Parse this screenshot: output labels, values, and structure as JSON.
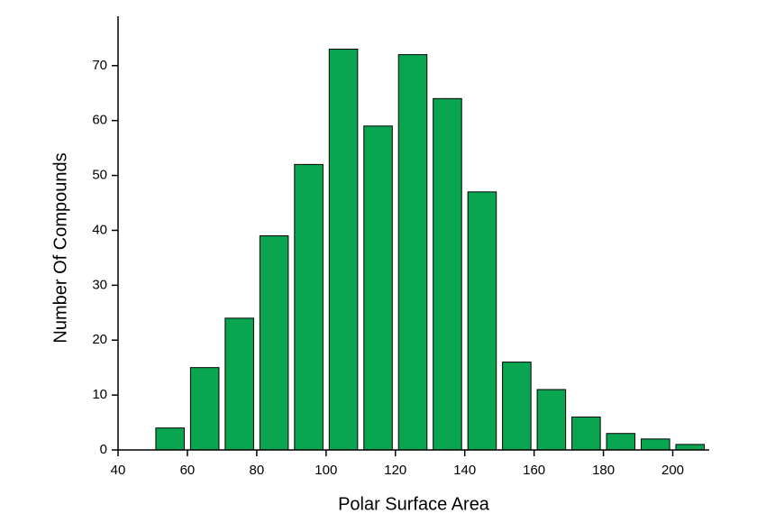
{
  "chart_data": {
    "type": "histogram",
    "x_label": "Polar Surface Area",
    "y_label": "Number Of Compounds",
    "bins": [
      50,
      60,
      70,
      80,
      90,
      100,
      110,
      120,
      130,
      140,
      150,
      160,
      170,
      180,
      190,
      200,
      210
    ],
    "values": [
      4,
      15,
      24,
      39,
      52,
      73,
      59,
      72,
      64,
      47,
      16,
      11,
      6,
      3,
      2,
      1
    ],
    "color": "#0aa550",
    "xlim": [
      40,
      210
    ],
    "xticks": [
      40,
      60,
      80,
      100,
      120,
      140,
      160,
      180,
      200
    ],
    "ylim": [
      0,
      79
    ],
    "yticks": [
      0,
      10,
      20,
      30,
      40,
      50,
      60,
      70
    ]
  }
}
